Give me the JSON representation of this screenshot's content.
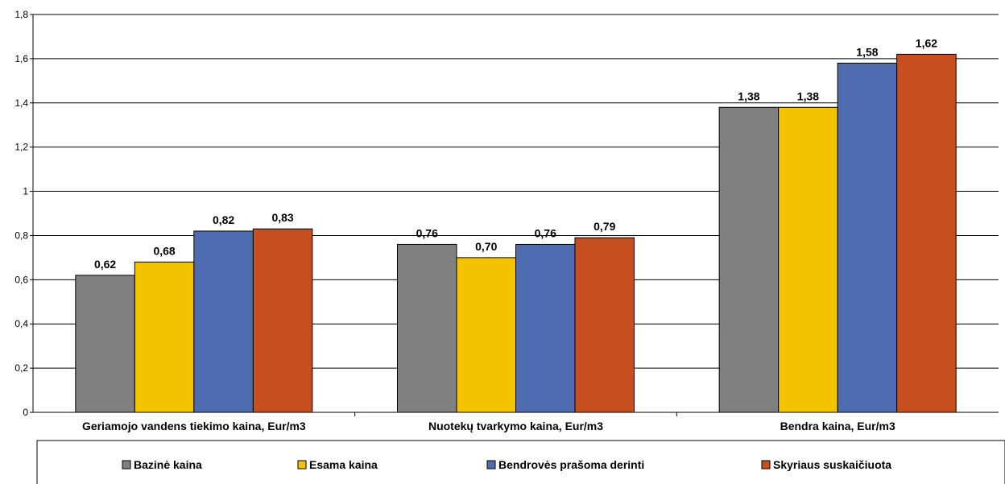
{
  "chart_data": {
    "type": "bar",
    "categories": [
      "Geriamojo vandens tiekimo kaina, Eur/m3",
      "Nuotekų tvarkymo kaina, Eur/m3",
      "Bendra kaina, Eur/m3"
    ],
    "series": [
      {
        "name": "Bazinė kaina",
        "color": "#808080",
        "values": [
          0.62,
          0.76,
          1.38
        ],
        "labels": [
          "0,62",
          "0,76",
          "1,38"
        ]
      },
      {
        "name": "Esama kaina",
        "color": "#F4C300",
        "values": [
          0.68,
          0.7,
          1.38
        ],
        "labels": [
          "0,68",
          "0,70",
          "1,38"
        ]
      },
      {
        "name": "Bendrovės prašoma derinti",
        "color": "#506CB0",
        "values": [
          0.82,
          0.76,
          1.58
        ],
        "labels": [
          "0,82",
          "0,76",
          "1,58"
        ]
      },
      {
        "name": "Skyriaus suskaičiuota",
        "color": "#C64F20",
        "values": [
          0.83,
          0.79,
          1.62
        ],
        "labels": [
          "0,83",
          "0,79",
          "1,62"
        ]
      }
    ],
    "ylim": [
      0,
      1.8
    ],
    "yticks": [
      0,
      0.2,
      0.4,
      0.6,
      0.8,
      1,
      1.2,
      1.4,
      1.6,
      1.8
    ],
    "ytick_labels": [
      "0",
      "0,2",
      "0,4",
      "0,6",
      "0,8",
      "1",
      "1,2",
      "1,4",
      "1,6",
      "1,8"
    ],
    "grid": true,
    "legend_position": "bottom"
  }
}
